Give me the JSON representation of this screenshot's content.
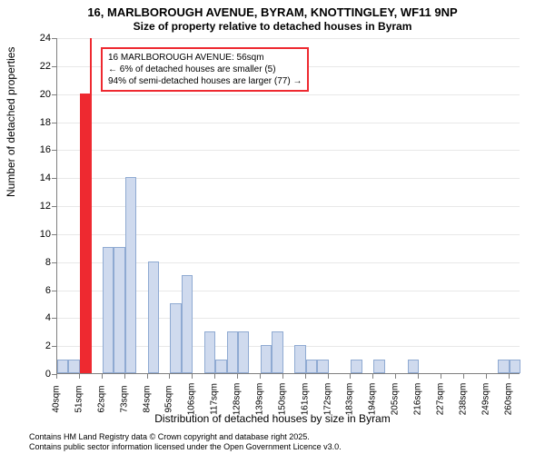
{
  "title_main": "16, MARLBOROUGH AVENUE, BYRAM, KNOTTINGLEY, WF11 9NP",
  "title_sub": "Size of property relative to detached houses in Byram",
  "y_axis_label": "Number of detached properties",
  "x_axis_label": "Distribution of detached houses by size in Byram",
  "footer_1": "Contains HM Land Registry data © Crown copyright and database right 2025.",
  "footer_2": "Contains public sector information licensed under the Open Government Licence v3.0.",
  "annotation": {
    "line1": "16 MARLBOROUGH AVENUE: 56sqm",
    "line2": "← 6% of detached houses are smaller (5)",
    "line3": "94% of semi-detached houses are larger (77) →",
    "border_color": "#ee2930"
  },
  "chart": {
    "type": "histogram",
    "ylim": [
      0,
      24
    ],
    "ytick_step": 2,
    "x_start": 40,
    "x_step": 11,
    "x_count": 21,
    "bar_color_fill": "#cfdaee",
    "bar_color_stroke": "#8faad2",
    "highlight_fill": "#ee2930",
    "marker_color": "#ee2930",
    "marker_x_value": 56,
    "grid_color": "#e8e8e8",
    "values": [
      1,
      1,
      20,
      0,
      9,
      9,
      14,
      0,
      8,
      0,
      5,
      7,
      0,
      3,
      1,
      3,
      3,
      0,
      2,
      3,
      0,
      2,
      1,
      1,
      0,
      0,
      1,
      0,
      1,
      0,
      0,
      1,
      0,
      0,
      0,
      0,
      0,
      0,
      0,
      1,
      1
    ],
    "highlight_bar_index": 2
  }
}
